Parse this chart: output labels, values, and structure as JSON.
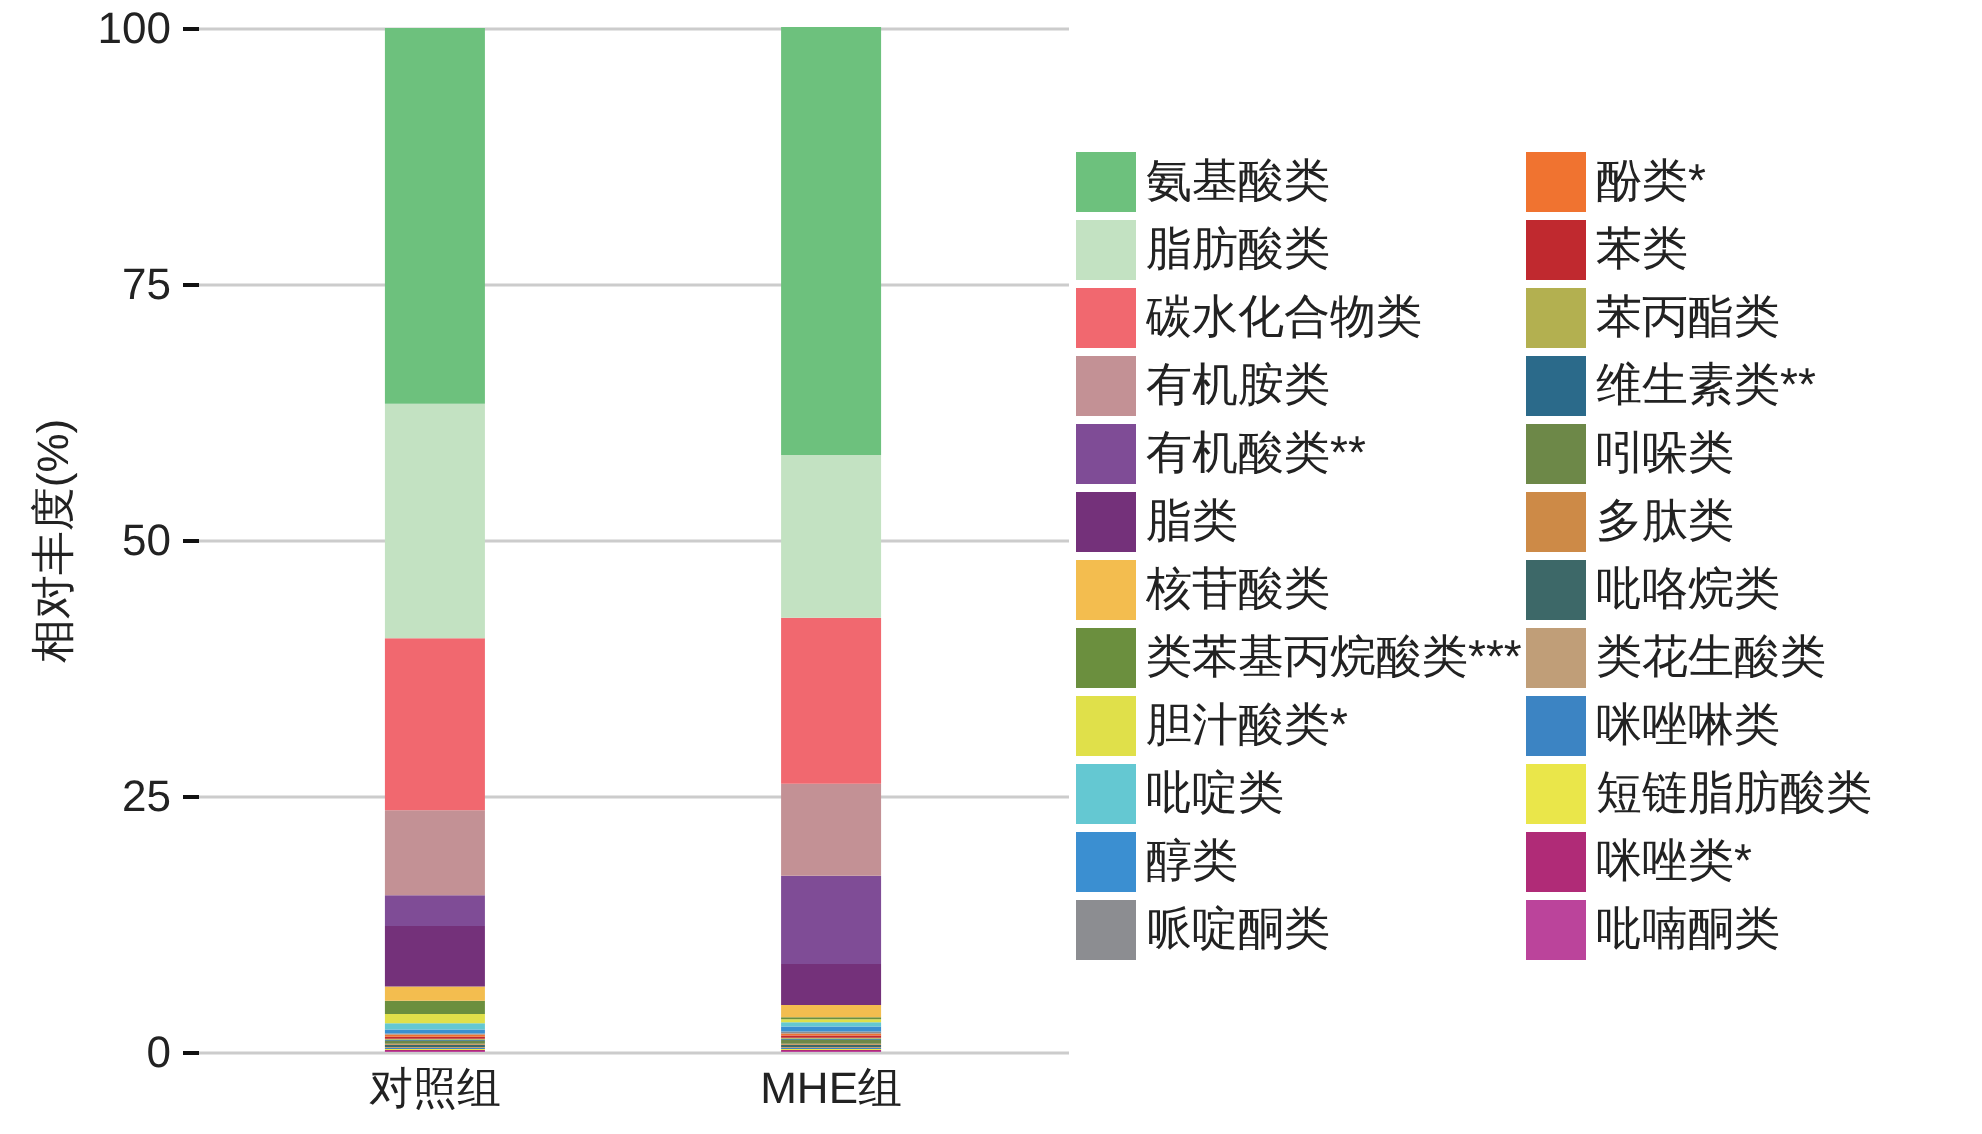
{
  "chart_data": {
    "type": "bar",
    "stacked": true,
    "ylabel": "相对丰度(%)",
    "categories": [
      "对照组",
      "MHE组"
    ],
    "ylim": [
      0,
      100
    ],
    "yticks": [
      0,
      25,
      50,
      75,
      100
    ],
    "grid": "y",
    "legend": "right",
    "series": [
      {
        "name": "吡喃酮类",
        "color": "#bb449b",
        "values": [
          0.1,
          0.1
        ]
      },
      {
        "name": "咪唑类*",
        "color": "#b02b77",
        "values": [
          0.1,
          0.1
        ]
      },
      {
        "name": "短链脂肪酸类",
        "color": "#eae64a",
        "values": [
          0.1,
          0.1
        ]
      },
      {
        "name": "咪唑啉类",
        "color": "#3c84c3",
        "values": [
          0.1,
          0.1
        ]
      },
      {
        "name": "类花生酸类",
        "color": "#c09e78",
        "values": [
          0.1,
          0.1
        ]
      },
      {
        "name": "吡咯烷类",
        "color": "#3d6868",
        "values": [
          0.2,
          0.2
        ]
      },
      {
        "name": "多肽类",
        "color": "#cd8a47",
        "values": [
          0.1,
          0.1
        ]
      },
      {
        "name": "吲哚类",
        "color": "#6d8848",
        "values": [
          0.3,
          0.4
        ]
      },
      {
        "name": "维生素类**",
        "color": "#2b6a8a",
        "values": [
          0.1,
          0.1
        ]
      },
      {
        "name": "苯丙酯类",
        "color": "#b3b050",
        "values": [
          0.1,
          0.1
        ]
      },
      {
        "name": "苯类",
        "color": "#c0292f",
        "values": [
          0.2,
          0.2
        ]
      },
      {
        "name": "酚类*",
        "color": "#f07330",
        "values": [
          0.2,
          0.2
        ]
      },
      {
        "name": "哌啶酮类",
        "color": "#8c8d91",
        "values": [
          0.1,
          0.2
        ]
      },
      {
        "name": "醇类",
        "color": "#3b8fd1",
        "values": [
          0.4,
          0.5
        ]
      },
      {
        "name": "吡啶类",
        "color": "#64c8d2",
        "values": [
          0.6,
          0.4
        ]
      },
      {
        "name": "胆汁酸类*",
        "color": "#e0e04a",
        "values": [
          0.9,
          0.3
        ]
      },
      {
        "name": "类苯基丙烷酸类***",
        "color": "#6b8f3e",
        "values": [
          1.3,
          0.2
        ]
      },
      {
        "name": "核苷酸类",
        "color": "#f3bd4f",
        "values": [
          1.4,
          1.2
        ]
      },
      {
        "name": "脂类",
        "color": "#74317a",
        "values": [
          5.9,
          4.0
        ]
      },
      {
        "name": "有机酸类**",
        "color": "#7f4c96",
        "values": [
          3.0,
          8.6
        ]
      },
      {
        "name": "有机胺类",
        "color": "#c39195",
        "values": [
          8.3,
          9.0
        ]
      },
      {
        "name": "碳水化合物类",
        "color": "#f1686f",
        "values": [
          16.8,
          16.2
        ]
      },
      {
        "name": "脂肪酸类",
        "color": "#c3e2c2",
        "values": [
          22.9,
          15.9
        ]
      },
      {
        "name": "氨基酸类",
        "color": "#6dc17d",
        "values": [
          36.7,
          41.8
        ]
      }
    ]
  }
}
